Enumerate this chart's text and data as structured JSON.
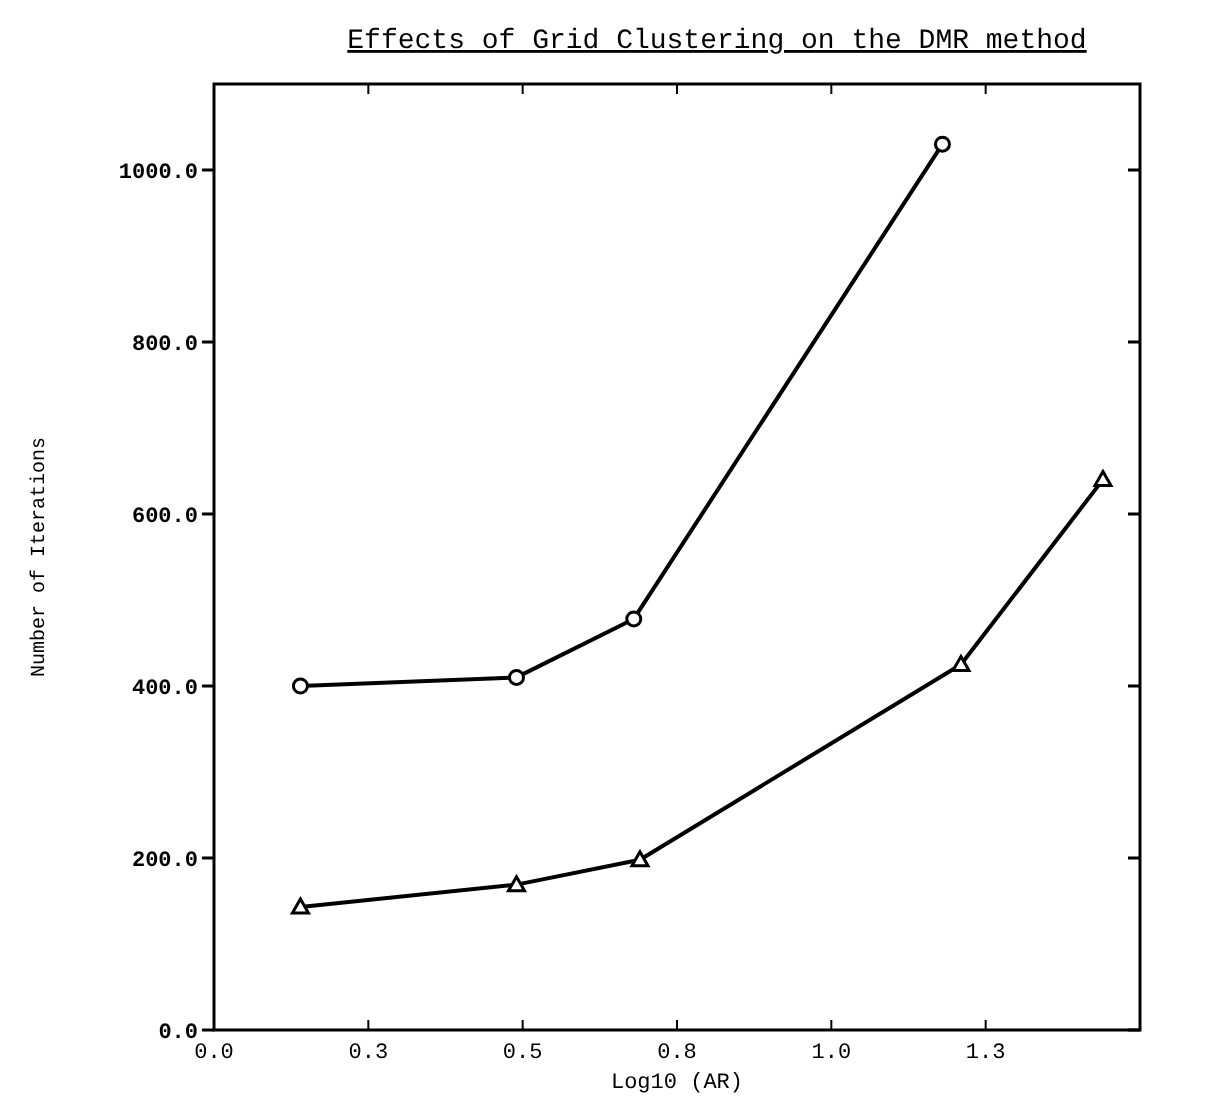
{
  "chart_data": {
    "type": "line",
    "title": "Effects of Grid Clustering on the DMR method",
    "xlabel": "Log10 (AR)",
    "ylabel": "Number of Iterations",
    "xlim": [
      0,
      1.5
    ],
    "ylim": [
      0,
      1100
    ],
    "xticks": [
      {
        "value": 0,
        "label": "0.0"
      },
      {
        "value": 0.25,
        "label": "0.3"
      },
      {
        "value": 0.5,
        "label": "0.5"
      },
      {
        "value": 0.75,
        "label": "0.8"
      },
      {
        "value": 1.0,
        "label": "1.0"
      },
      {
        "value": 1.25,
        "label": "1.3"
      }
    ],
    "yticks": [
      {
        "value": 0,
        "label": "0.0"
      },
      {
        "value": 200,
        "label": "200.0"
      },
      {
        "value": 400,
        "label": "400.0"
      },
      {
        "value": 600,
        "label": "600.0"
      },
      {
        "value": 800,
        "label": "800.0"
      },
      {
        "value": 1000,
        "label": "1000.0"
      }
    ],
    "grid": false,
    "series": [
      {
        "color": "#000000",
        "marker": "circle",
        "x": [
          0.14,
          0.49,
          0.68,
          1.18
        ],
        "values": [
          400,
          410,
          478,
          1030
        ]
      },
      {
        "color": "#000000",
        "marker": "triangle",
        "x": [
          0.14,
          0.49,
          0.69,
          1.21,
          1.44
        ],
        "values": [
          143,
          169,
          198,
          425,
          640
        ]
      }
    ]
  }
}
